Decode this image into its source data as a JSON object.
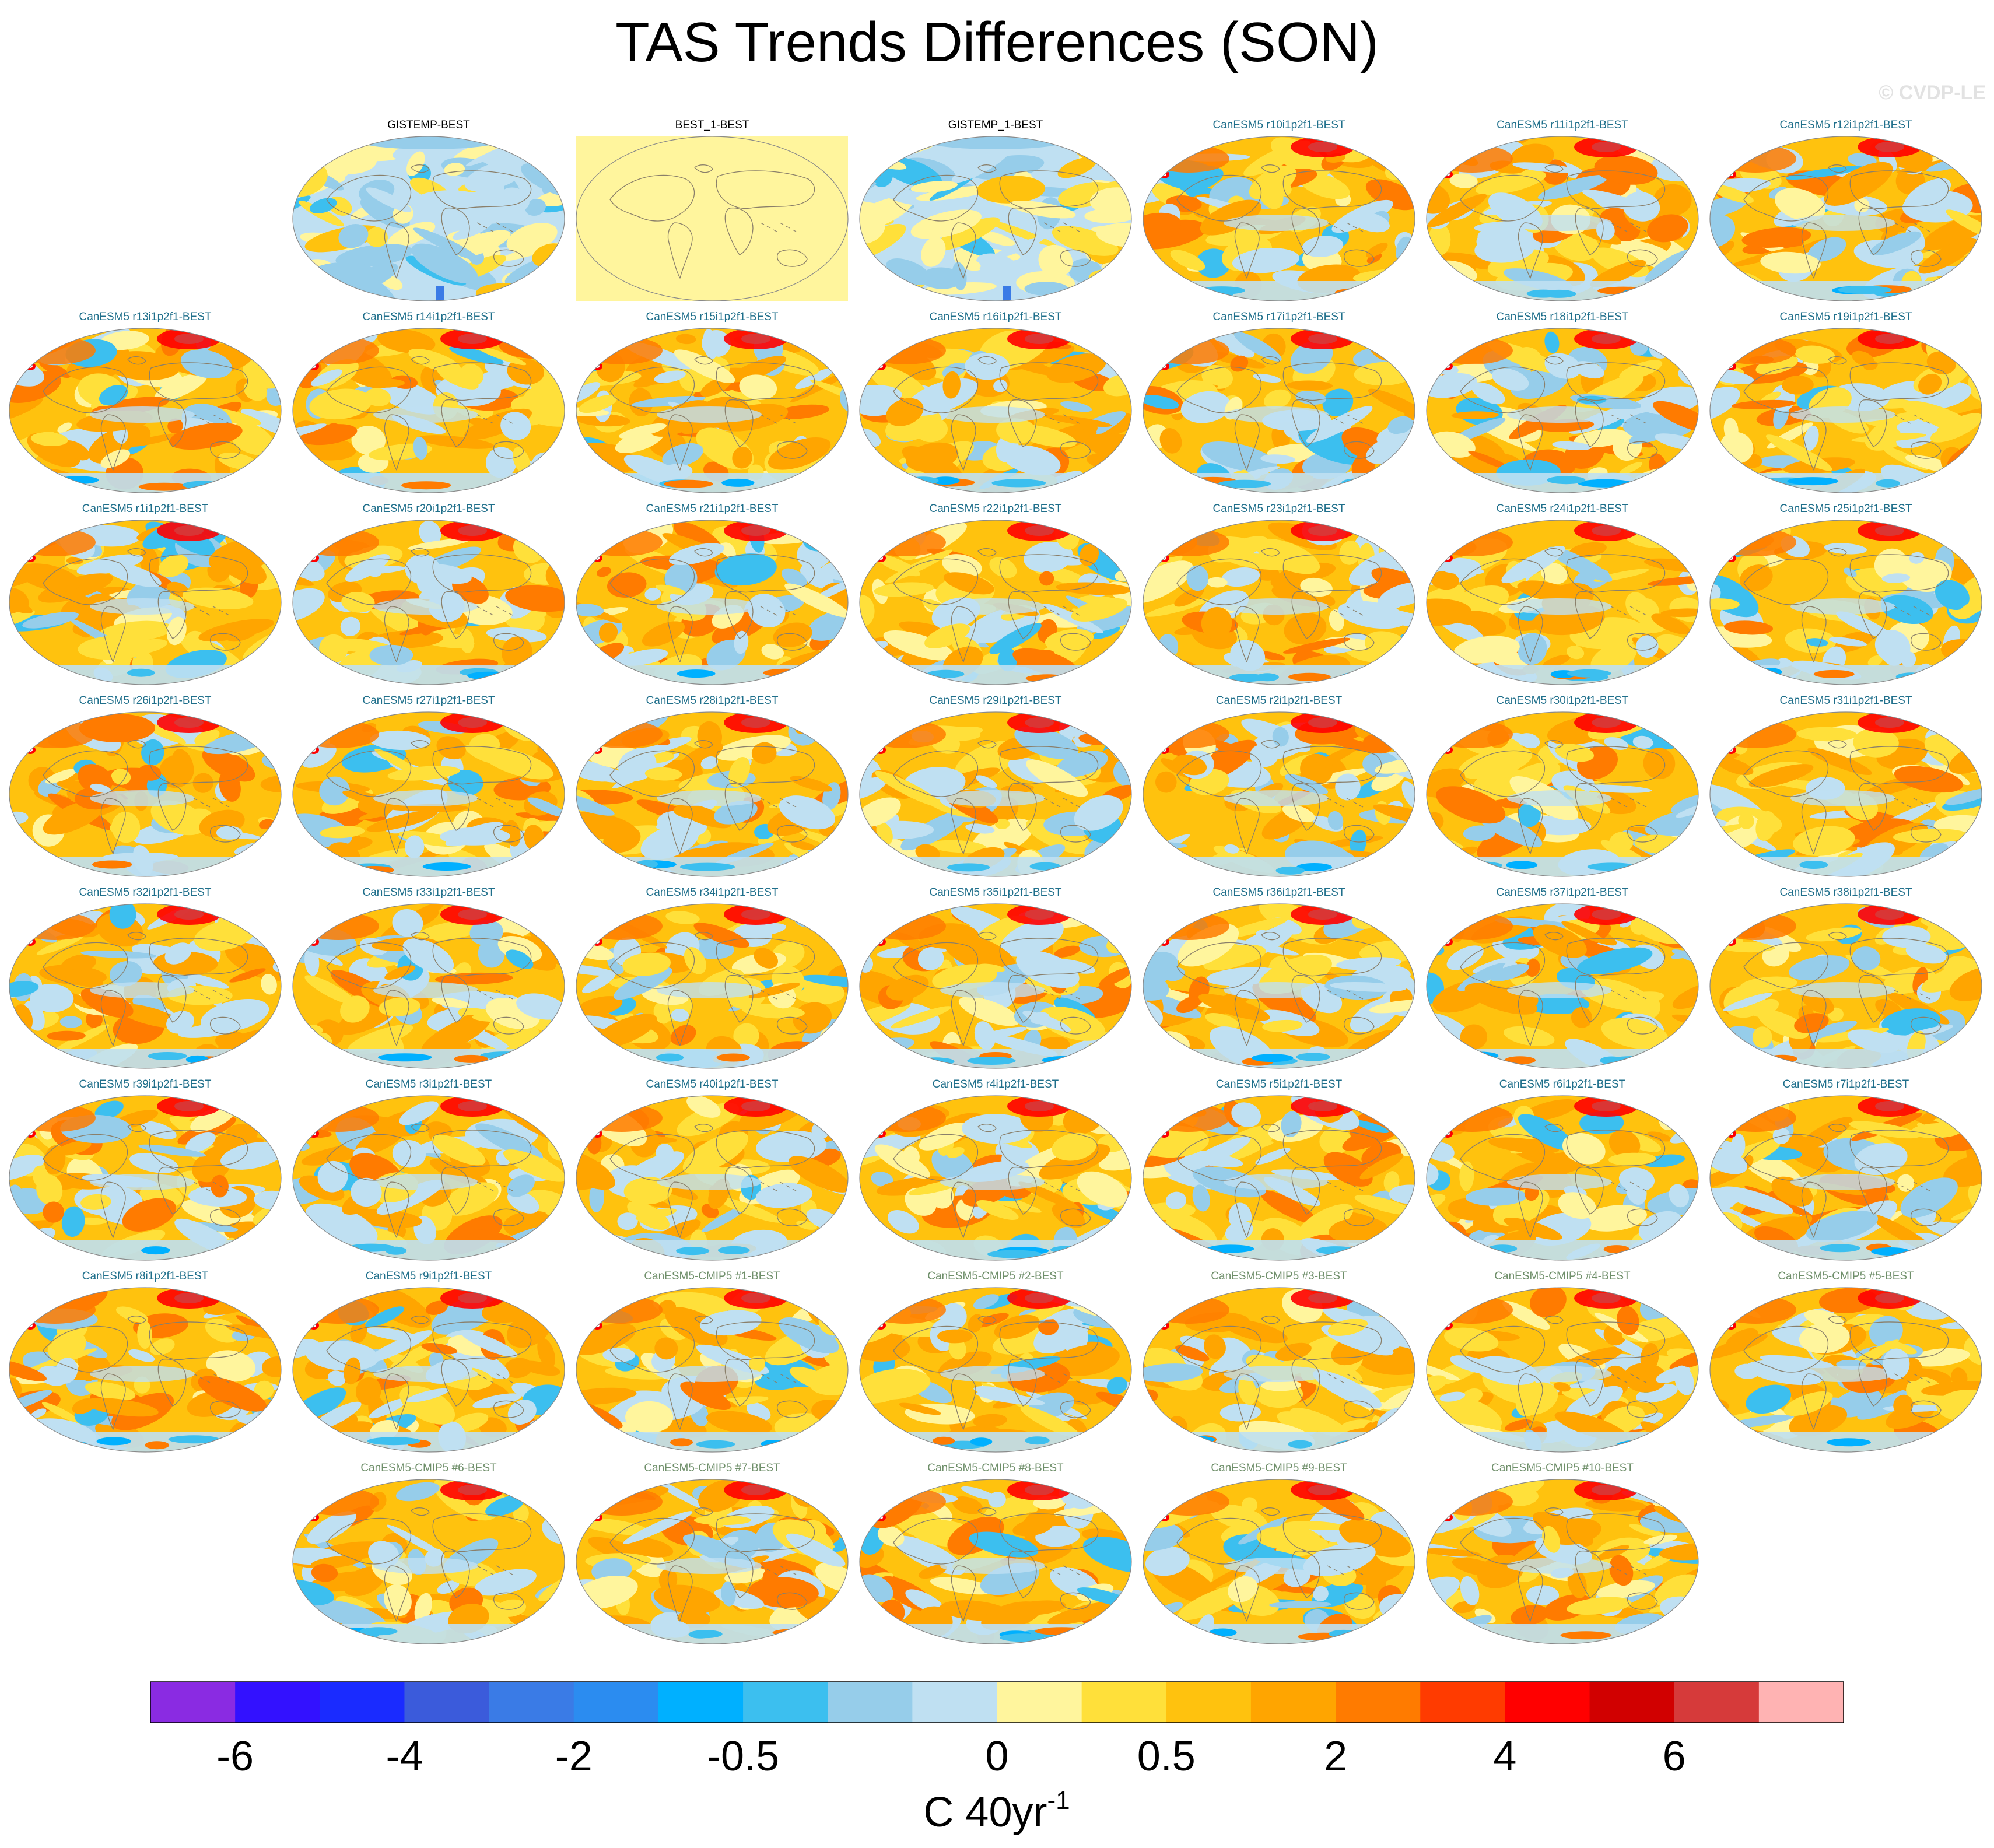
{
  "title": "TAS Trends Differences (SON)",
  "watermark": "© CVDP-LE",
  "chart_data": {
    "type": "map-panels",
    "title": "TAS Trends Differences (SON)",
    "layout_rows": [
      [
        null,
        "GISTEMP-BEST",
        "BEST_1-BEST",
        "GISTEMP_1-BEST",
        "CanESM5 r10i1p2f1-BEST",
        "CanESM5 r11i1p2f1-BEST",
        "CanESM5 r12i1p2f1-BEST"
      ],
      [
        "CanESM5 r13i1p2f1-BEST",
        "CanESM5 r14i1p2f1-BEST",
        "CanESM5 r15i1p2f1-BEST",
        "CanESM5 r16i1p2f1-BEST",
        "CanESM5 r17i1p2f1-BEST",
        "CanESM5 r18i1p2f1-BEST",
        "CanESM5 r19i1p2f1-BEST"
      ],
      [
        "CanESM5 r1i1p2f1-BEST",
        "CanESM5 r20i1p2f1-BEST",
        "CanESM5 r21i1p2f1-BEST",
        "CanESM5 r22i1p2f1-BEST",
        "CanESM5 r23i1p2f1-BEST",
        "CanESM5 r24i1p2f1-BEST",
        "CanESM5 r25i1p2f1-BEST"
      ],
      [
        "CanESM5 r26i1p2f1-BEST",
        "CanESM5 r27i1p2f1-BEST",
        "CanESM5 r28i1p2f1-BEST",
        "CanESM5 r29i1p2f1-BEST",
        "CanESM5 r2i1p2f1-BEST",
        "CanESM5 r30i1p2f1-BEST",
        "CanESM5 r31i1p2f1-BEST"
      ],
      [
        "CanESM5 r32i1p2f1-BEST",
        "CanESM5 r33i1p2f1-BEST",
        "CanESM5 r34i1p2f1-BEST",
        "CanESM5 r35i1p2f1-BEST",
        "CanESM5 r36i1p2f1-BEST",
        "CanESM5 r37i1p2f1-BEST",
        "CanESM5 r38i1p2f1-BEST"
      ],
      [
        "CanESM5 r39i1p2f1-BEST",
        "CanESM5 r3i1p2f1-BEST",
        "CanESM5 r40i1p2f1-BEST",
        "CanESM5 r4i1p2f1-BEST",
        "CanESM5 r5i1p2f1-BEST",
        "CanESM5 r6i1p2f1-BEST",
        "CanESM5 r7i1p2f1-BEST"
      ],
      [
        "CanESM5 r8i1p2f1-BEST",
        "CanESM5 r9i1p2f1-BEST",
        "CanESM5-CMIP5 #1-BEST",
        "CanESM5-CMIP5 #2-BEST",
        "CanESM5-CMIP5 #3-BEST",
        "CanESM5-CMIP5 #4-BEST",
        "CanESM5-CMIP5 #5-BEST"
      ],
      [
        null,
        "CanESM5-CMIP5 #6-BEST",
        "CanESM5-CMIP5 #7-BEST",
        "CanESM5-CMIP5 #8-BEST",
        "CanESM5-CMIP5 #9-BEST",
        "CanESM5-CMIP5 #10-BEST",
        null
      ]
    ],
    "panel_styles": {
      "observation": [
        "GISTEMP-BEST",
        "GISTEMP_1-BEST"
      ],
      "blank": [
        "BEST_1-BEST"
      ],
      "cmip5": [
        "CanESM5-CMIP5 #1-BEST",
        "CanESM5-CMIP5 #2-BEST",
        "CanESM5-CMIP5 #3-BEST",
        "CanESM5-CMIP5 #4-BEST",
        "CanESM5-CMIP5 #5-BEST",
        "CanESM5-CMIP5 #6-BEST",
        "CanESM5-CMIP5 #7-BEST",
        "CanESM5-CMIP5 #8-BEST",
        "CanESM5-CMIP5 #9-BEST",
        "CanESM5-CMIP5 #10-BEST"
      ]
    },
    "title_colors": {
      "observation": "#000000",
      "model": "#1f6f8b",
      "cmip5": "#6f8f6a"
    },
    "blank_fill": "#fff59d",
    "colorbar": {
      "colors": [
        "#8a2be2",
        "#3311ff",
        "#1a2bff",
        "#3b5bdb",
        "#3a7be6",
        "#2b8cf0",
        "#00b0ff",
        "#3cbfef",
        "#96cdea",
        "#bfe0f2",
        "#fff59d",
        "#ffe03a",
        "#ffc20e",
        "#ffa500",
        "#ff7b00",
        "#ff3b00",
        "#ff0000",
        "#d10000",
        "#d63a3a",
        "#ffb3b3"
      ],
      "tick_labels": [
        "-6",
        "-4",
        "-2",
        "-0.5",
        "0",
        "0.5",
        "2",
        "4",
        "6"
      ],
      "tick_boundary_index": [
        1,
        3,
        5,
        7,
        10,
        12,
        14,
        16,
        18
      ],
      "unit_label": "C 40yr",
      "unit_exponent": "-1"
    }
  }
}
